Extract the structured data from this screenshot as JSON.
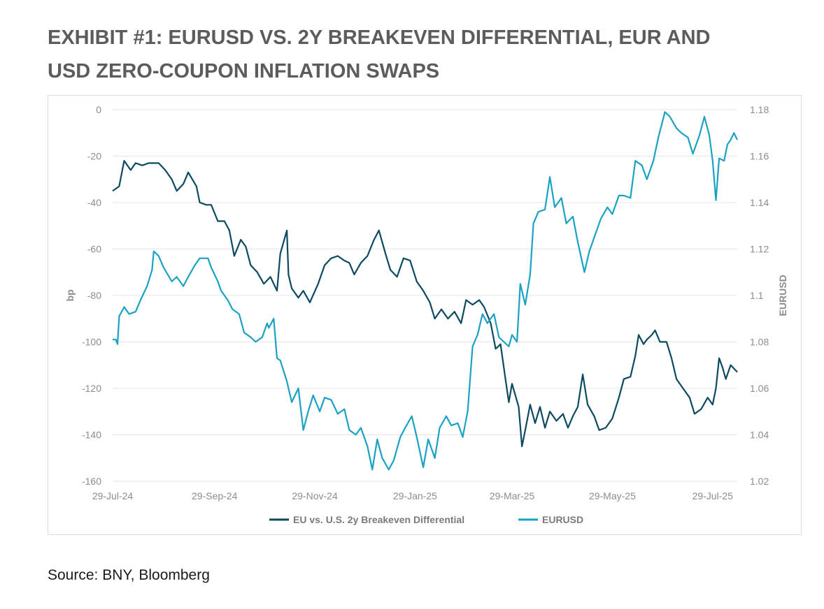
{
  "title_lines": [
    "EXHIBIT #1: EURUSD VS. 2Y BREAKEVEN DIFFERENTIAL, EUR AND",
    "USD ZERO-COUPON INFLATION SWAPS"
  ],
  "source": "Source: BNY, Bloomberg",
  "colors": {
    "differential": "#0b4a60",
    "eurusd": "#1aa2c4",
    "grid": "#e4e4e4",
    "text": "#8c8c8c"
  },
  "chart_data": {
    "type": "line",
    "title": "EXHIBIT #1: EURUSD VS. 2Y BREAKEVEN DIFFERENTIAL, EUR AND USD ZERO-COUPON INFLATION SWAPS",
    "ylabel": "bp",
    "y2label": "EURUSD",
    "ylim": [
      -160,
      0
    ],
    "y2lim": [
      1.02,
      1.18
    ],
    "yticks": [
      "0",
      "-20",
      "-40",
      "-60",
      "-80",
      "-100",
      "-120",
      "-140",
      "-160"
    ],
    "y2ticks": [
      "1.18",
      "1.16",
      "1.14",
      "1.12",
      "1.1",
      "1.08",
      "1.06",
      "1.04",
      "1.02"
    ],
    "xlim": [
      "2024-07-29",
      "2025-08-13"
    ],
    "xticks": [
      "29-Jul-24",
      "29-Sep-24",
      "29-Nov-24",
      "29-Jan-25",
      "29-Mar-25",
      "29-May-25",
      "29-Jul-25"
    ],
    "grid": "horizontal",
    "legend_position": "bottom",
    "series": [
      {
        "name": "EU vs. U.S. 2y Breakeven Differential",
        "axis": "left",
        "points": [
          [
            "2024-07-29",
            -35
          ],
          [
            "2024-07-31",
            -34
          ],
          [
            "2024-08-02",
            -33
          ],
          [
            "2024-08-05",
            -22
          ],
          [
            "2024-08-09",
            -26
          ],
          [
            "2024-08-12",
            -23
          ],
          [
            "2024-08-16",
            -24
          ],
          [
            "2024-08-20",
            -23
          ],
          [
            "2024-08-26",
            -23
          ],
          [
            "2024-08-30",
            -26
          ],
          [
            "2024-09-03",
            -30
          ],
          [
            "2024-09-06",
            -35
          ],
          [
            "2024-09-10",
            -32
          ],
          [
            "2024-09-13",
            -27
          ],
          [
            "2024-09-18",
            -33
          ],
          [
            "2024-09-20",
            -40
          ],
          [
            "2024-09-24",
            -41
          ],
          [
            "2024-09-27",
            -41
          ],
          [
            "2024-10-01",
            -48
          ],
          [
            "2024-10-05",
            -48
          ],
          [
            "2024-10-08",
            -52
          ],
          [
            "2024-10-11",
            -63
          ],
          [
            "2024-10-15",
            -56
          ],
          [
            "2024-10-18",
            -59
          ],
          [
            "2024-10-21",
            -67
          ],
          [
            "2024-10-25",
            -70
          ],
          [
            "2024-10-29",
            -75
          ],
          [
            "2024-11-02",
            -72
          ],
          [
            "2024-11-06",
            -78
          ],
          [
            "2024-11-08",
            -62
          ],
          [
            "2024-11-12",
            -52
          ],
          [
            "2024-11-13",
            -71
          ],
          [
            "2024-11-15",
            -77
          ],
          [
            "2024-11-19",
            -81
          ],
          [
            "2024-11-22",
            -78
          ],
          [
            "2024-11-26",
            -83
          ],
          [
            "2024-12-01",
            -75
          ],
          [
            "2024-12-05",
            -67
          ],
          [
            "2024-12-09",
            -64
          ],
          [
            "2024-12-13",
            -63
          ],
          [
            "2024-12-17",
            -65
          ],
          [
            "2024-12-20",
            -66
          ],
          [
            "2024-12-23",
            -71
          ],
          [
            "2024-12-27",
            -66
          ],
          [
            "2024-12-31",
            -63
          ],
          [
            "2025-01-04",
            -56
          ],
          [
            "2025-01-07",
            -52
          ],
          [
            "2025-01-11",
            -62
          ],
          [
            "2025-01-14",
            -69
          ],
          [
            "2025-01-18",
            -72
          ],
          [
            "2025-01-22",
            -64
          ],
          [
            "2025-01-26",
            -65
          ],
          [
            "2025-01-30",
            -74
          ],
          [
            "2025-02-03",
            -78
          ],
          [
            "2025-02-07",
            -83
          ],
          [
            "2025-02-10",
            -90
          ],
          [
            "2025-02-14",
            -86
          ],
          [
            "2025-02-18",
            -90
          ],
          [
            "2025-02-22",
            -87
          ],
          [
            "2025-02-26",
            -92
          ],
          [
            "2025-03-01",
            -82
          ],
          [
            "2025-03-05",
            -84
          ],
          [
            "2025-03-09",
            -82
          ],
          [
            "2025-03-12",
            -85
          ],
          [
            "2025-03-16",
            -92
          ],
          [
            "2025-03-19",
            -103
          ],
          [
            "2025-03-22",
            -101
          ],
          [
            "2025-03-25",
            -116
          ],
          [
            "2025-03-27",
            -126
          ],
          [
            "2025-03-29",
            -118
          ],
          [
            "2025-04-02",
            -128
          ],
          [
            "2025-04-04",
            -145
          ],
          [
            "2025-04-06",
            -138
          ],
          [
            "2025-04-09",
            -127
          ],
          [
            "2025-04-12",
            -135
          ],
          [
            "2025-04-15",
            -128
          ],
          [
            "2025-04-18",
            -137
          ],
          [
            "2025-04-21",
            -130
          ],
          [
            "2025-04-25",
            -134
          ],
          [
            "2025-04-29",
            -131
          ],
          [
            "2025-05-02",
            -137
          ],
          [
            "2025-05-05",
            -132
          ],
          [
            "2025-05-08",
            -128
          ],
          [
            "2025-05-11",
            -114
          ],
          [
            "2025-05-14",
            -127
          ],
          [
            "2025-05-18",
            -132
          ],
          [
            "2025-05-21",
            -138
          ],
          [
            "2025-05-25",
            -137
          ],
          [
            "2025-05-29",
            -133
          ],
          [
            "2025-06-02",
            -124
          ],
          [
            "2025-06-05",
            -116
          ],
          [
            "2025-06-09",
            -115
          ],
          [
            "2025-06-12",
            -106
          ],
          [
            "2025-06-14",
            -97
          ],
          [
            "2025-06-17",
            -101
          ],
          [
            "2025-06-19",
            -99
          ],
          [
            "2025-06-22",
            -97
          ],
          [
            "2025-06-24",
            -95
          ],
          [
            "2025-06-27",
            -100
          ],
          [
            "2025-07-01",
            -100
          ],
          [
            "2025-07-04",
            -107
          ],
          [
            "2025-07-07",
            -116
          ],
          [
            "2025-07-11",
            -120
          ],
          [
            "2025-07-15",
            -124
          ],
          [
            "2025-07-18",
            -131
          ],
          [
            "2025-07-22",
            -129
          ],
          [
            "2025-07-26",
            -124
          ],
          [
            "2025-07-29",
            -127
          ],
          [
            "2025-07-31",
            -120
          ],
          [
            "2025-08-02",
            -107
          ],
          [
            "2025-08-04",
            -111
          ],
          [
            "2025-08-06",
            -116
          ],
          [
            "2025-08-09",
            -110
          ],
          [
            "2025-08-13",
            -113
          ]
        ]
      },
      {
        "name": "EURUSD",
        "axis": "right",
        "points": [
          [
            "2024-07-29",
            1.081
          ],
          [
            "2024-07-31",
            1.081
          ],
          [
            "2024-08-01",
            1.079
          ],
          [
            "2024-08-02",
            1.091
          ],
          [
            "2024-08-05",
            1.095
          ],
          [
            "2024-08-08",
            1.092
          ],
          [
            "2024-08-12",
            1.093
          ],
          [
            "2024-08-15",
            1.098
          ],
          [
            "2024-08-19",
            1.104
          ],
          [
            "2024-08-22",
            1.111
          ],
          [
            "2024-08-23",
            1.119
          ],
          [
            "2024-08-26",
            1.117
          ],
          [
            "2024-08-29",
            1.112
          ],
          [
            "2024-09-03",
            1.106
          ],
          [
            "2024-09-06",
            1.108
          ],
          [
            "2024-09-10",
            1.104
          ],
          [
            "2024-09-13",
            1.108
          ],
          [
            "2024-09-17",
            1.113
          ],
          [
            "2024-09-20",
            1.116
          ],
          [
            "2024-09-25",
            1.116
          ],
          [
            "2024-09-27",
            1.112
          ],
          [
            "2024-10-01",
            1.106
          ],
          [
            "2024-10-03",
            1.102
          ],
          [
            "2024-10-07",
            1.098
          ],
          [
            "2024-10-10",
            1.094
          ],
          [
            "2024-10-14",
            1.092
          ],
          [
            "2024-10-17",
            1.084
          ],
          [
            "2024-10-21",
            1.082
          ],
          [
            "2024-10-24",
            1.08
          ],
          [
            "2024-10-28",
            1.082
          ],
          [
            "2024-10-31",
            1.088
          ],
          [
            "2024-11-01",
            1.086
          ],
          [
            "2024-11-04",
            1.09
          ],
          [
            "2024-11-06",
            1.073
          ],
          [
            "2024-11-08",
            1.072
          ],
          [
            "2024-11-12",
            1.063
          ],
          [
            "2024-11-15",
            1.054
          ],
          [
            "2024-11-19",
            1.06
          ],
          [
            "2024-11-22",
            1.042
          ],
          [
            "2024-11-25",
            1.05
          ],
          [
            "2024-11-28",
            1.057
          ],
          [
            "2024-12-02",
            1.05
          ],
          [
            "2024-12-05",
            1.056
          ],
          [
            "2024-12-09",
            1.055
          ],
          [
            "2024-12-13",
            1.049
          ],
          [
            "2024-12-17",
            1.051
          ],
          [
            "2024-12-20",
            1.042
          ],
          [
            "2024-12-24",
            1.04
          ],
          [
            "2024-12-27",
            1.043
          ],
          [
            "2024-12-31",
            1.035
          ],
          [
            "2025-01-03",
            1.025
          ],
          [
            "2025-01-06",
            1.038
          ],
          [
            "2025-01-09",
            1.03
          ],
          [
            "2025-01-13",
            1.025
          ],
          [
            "2025-01-16",
            1.029
          ],
          [
            "2025-01-20",
            1.039
          ],
          [
            "2025-01-23",
            1.043
          ],
          [
            "2025-01-27",
            1.048
          ],
          [
            "2025-01-30",
            1.039
          ],
          [
            "2025-02-03",
            1.026
          ],
          [
            "2025-02-06",
            1.038
          ],
          [
            "2025-02-10",
            1.03
          ],
          [
            "2025-02-13",
            1.043
          ],
          [
            "2025-02-17",
            1.048
          ],
          [
            "2025-02-20",
            1.044
          ],
          [
            "2025-02-24",
            1.045
          ],
          [
            "2025-02-27",
            1.039
          ],
          [
            "2025-03-02",
            1.05
          ],
          [
            "2025-03-05",
            1.078
          ],
          [
            "2025-03-08",
            1.083
          ],
          [
            "2025-03-11",
            1.092
          ],
          [
            "2025-03-14",
            1.088
          ],
          [
            "2025-03-18",
            1.092
          ],
          [
            "2025-03-21",
            1.082
          ],
          [
            "2025-03-24",
            1.08
          ],
          [
            "2025-03-27",
            1.078
          ],
          [
            "2025-03-29",
            1.083
          ],
          [
            "2025-04-01",
            1.08
          ],
          [
            "2025-04-03",
            1.105
          ],
          [
            "2025-04-06",
            1.096
          ],
          [
            "2025-04-09",
            1.109
          ],
          [
            "2025-04-11",
            1.131
          ],
          [
            "2025-04-14",
            1.136
          ],
          [
            "2025-04-18",
            1.137
          ],
          [
            "2025-04-21",
            1.151
          ],
          [
            "2025-04-24",
            1.138
          ],
          [
            "2025-04-28",
            1.142
          ],
          [
            "2025-05-01",
            1.131
          ],
          [
            "2025-05-05",
            1.134
          ],
          [
            "2025-05-08",
            1.123
          ],
          [
            "2025-05-12",
            1.11
          ],
          [
            "2025-05-15",
            1.119
          ],
          [
            "2025-05-19",
            1.127
          ],
          [
            "2025-05-22",
            1.133
          ],
          [
            "2025-05-26",
            1.138
          ],
          [
            "2025-05-29",
            1.135
          ],
          [
            "2025-06-02",
            1.143
          ],
          [
            "2025-06-05",
            1.143
          ],
          [
            "2025-06-09",
            1.142
          ],
          [
            "2025-06-12",
            1.158
          ],
          [
            "2025-06-16",
            1.156
          ],
          [
            "2025-06-19",
            1.15
          ],
          [
            "2025-06-23",
            1.158
          ],
          [
            "2025-06-26",
            1.168
          ],
          [
            "2025-06-30",
            1.179
          ],
          [
            "2025-07-03",
            1.177
          ],
          [
            "2025-07-07",
            1.172
          ],
          [
            "2025-07-10",
            1.17
          ],
          [
            "2025-07-14",
            1.168
          ],
          [
            "2025-07-17",
            1.161
          ],
          [
            "2025-07-21",
            1.169
          ],
          [
            "2025-07-24",
            1.177
          ],
          [
            "2025-07-27",
            1.169
          ],
          [
            "2025-07-29",
            1.158
          ],
          [
            "2025-07-31",
            1.141
          ],
          [
            "2025-08-02",
            1.159
          ],
          [
            "2025-08-05",
            1.158
          ],
          [
            "2025-08-07",
            1.165
          ],
          [
            "2025-08-09",
            1.167
          ],
          [
            "2025-08-11",
            1.17
          ],
          [
            "2025-08-13",
            1.167
          ]
        ]
      }
    ]
  }
}
